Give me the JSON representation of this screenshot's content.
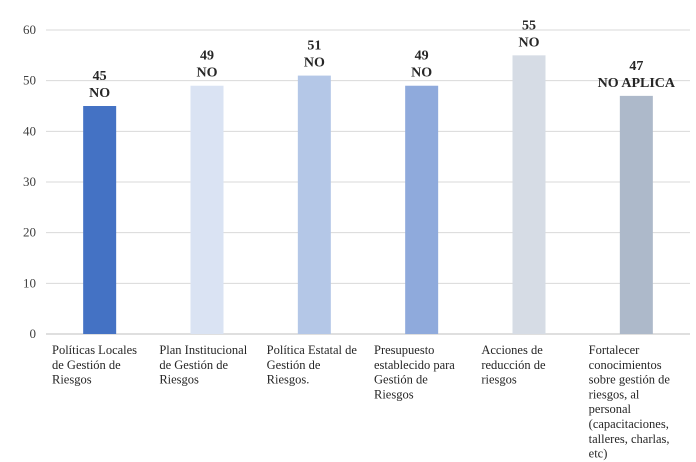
{
  "chart_data": {
    "type": "bar",
    "title": "",
    "xlabel": "",
    "ylabel": "",
    "ylim": [
      0,
      60
    ],
    "yticks": [
      0,
      10,
      20,
      30,
      40,
      50,
      60
    ],
    "grid": true,
    "legend": "none",
    "categories": [
      "Políticas Locales de Gestión de Riesgos",
      "Plan Institucional de Gestión de Riesgos",
      "Política Estatal de Gestión de Riesgos.",
      "Presupuesto establecido para Gestión de Riesgos",
      "Acciones de reducción de riesgos",
      "Fortalecer conocimientos sobre gestión de riesgos, al personal (capacitaciones, talleres, charlas, etc)"
    ],
    "category_lines": [
      [
        "Políticas Locales",
        "de Gestión de",
        "Riesgos"
      ],
      [
        "Plan Institucional",
        "de Gestión de",
        "Riesgos"
      ],
      [
        "Política Estatal de",
        "Gestión de",
        "Riesgos."
      ],
      [
        "Presupuesto",
        "establecido para",
        "Gestión de",
        "Riesgos"
      ],
      [
        "Acciones de",
        "reducción de",
        "riesgos"
      ],
      [
        "Fortalecer",
        "conocimientos",
        "sobre gestión de",
        "riesgos, al",
        "personal",
        "(capacitaciones,",
        "talleres, charlas,",
        "etc)"
      ]
    ],
    "values": [
      45,
      49,
      51,
      49,
      55,
      47
    ],
    "data_labels": [
      "NO",
      "NO",
      "NO",
      "NO",
      "NO",
      "NO APLICA"
    ],
    "colors": [
      "#4472C4",
      "#DAE3F3",
      "#B4C7E7",
      "#8FAADC",
      "#D6DCE5",
      "#ADB9CA"
    ]
  }
}
